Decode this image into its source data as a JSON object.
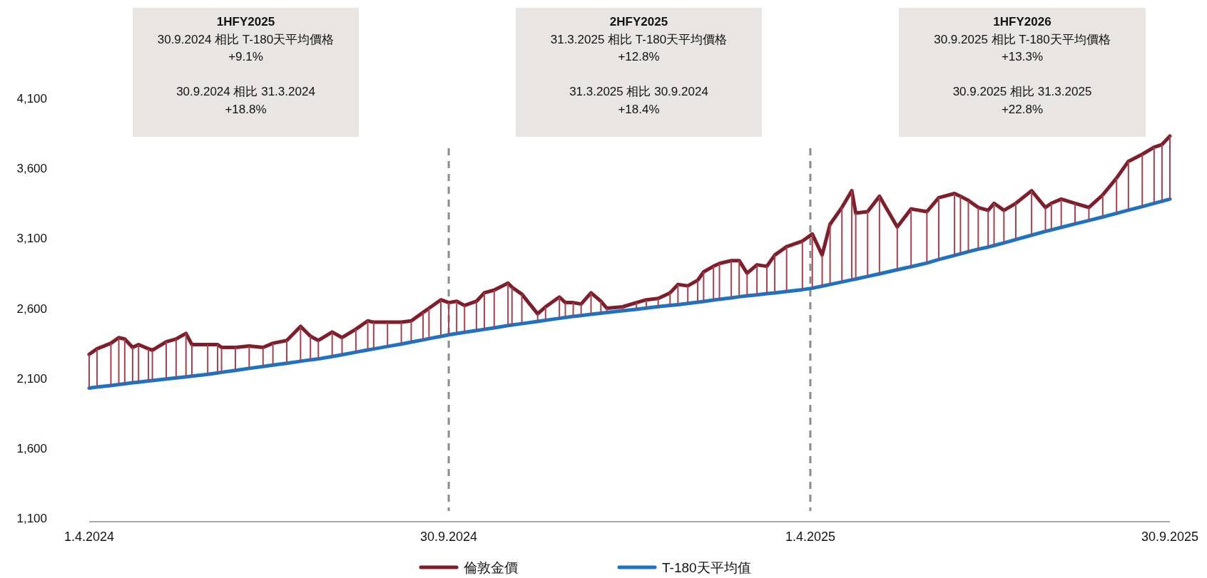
{
  "chart_data": {
    "type": "line",
    "xlim": [
      "2024-04-01",
      "2025-09-30"
    ],
    "ylim": [
      1100,
      4100
    ],
    "xticks": [
      {
        "value": "2024-04-01",
        "label": "1.4.2024"
      },
      {
        "value": "2024-09-30",
        "label": "30.9.2024"
      },
      {
        "value": "2025-04-01",
        "label": "1.4.2025"
      },
      {
        "value": "2025-09-30",
        "label": "30.9.2025"
      }
    ],
    "yticks": [
      {
        "value": 1100,
        "label": "1,100"
      },
      {
        "value": 1600,
        "label": "1,600"
      },
      {
        "value": 2100,
        "label": "2,100"
      },
      {
        "value": 2600,
        "label": "2,600"
      },
      {
        "value": 3100,
        "label": "3,100"
      },
      {
        "value": 3600,
        "label": "3,600"
      },
      {
        "value": 4100,
        "label": "4,100"
      }
    ],
    "grid": false,
    "legend": "bottom",
    "marker": "none",
    "line_style": "solid",
    "ref_lines": [
      {
        "axis": "x",
        "value": "2024-09-30",
        "color": "#8c8c8c",
        "line_style": "dashed"
      },
      {
        "axis": "x",
        "value": "2025-04-01",
        "color": "#8c8c8c",
        "line_style": "dashed"
      }
    ],
    "annotations": [
      "1HFY2025\n30.9.2024 相比 T-180天平均價格\n+9.1%\n\n30.9.2024 相比 31.3.2024\n+18.8%",
      "2HFY2025\n31.3.2025 相比 T-180天平均價格\n+12.8%\n\n31.3.2025 相比 30.9.2024\n+18.4%",
      "1HFY2026\n30.9.2025 相比 T-180天平均價格\n+13.3%\n\n30.9.2025 相比 31.3.2025\n+22.8%"
    ],
    "x": [
      "2024-04-01",
      "2024-04-05",
      "2024-04-12",
      "2024-04-16",
      "2024-04-19",
      "2024-04-23",
      "2024-04-26",
      "2024-05-01",
      "2024-05-03",
      "2024-05-10",
      "2024-05-15",
      "2024-05-20",
      "2024-05-23",
      "2024-05-31",
      "2024-06-05",
      "2024-06-07",
      "2024-06-14",
      "2024-06-21",
      "2024-06-28",
      "2024-07-03",
      "2024-07-10",
      "2024-07-17",
      "2024-07-22",
      "2024-07-26",
      "2024-08-02",
      "2024-08-07",
      "2024-08-14",
      "2024-08-20",
      "2024-08-23",
      "2024-08-30",
      "2024-09-06",
      "2024-09-11",
      "2024-09-17",
      "2024-09-20",
      "2024-09-26",
      "2024-09-30",
      "2024-10-04",
      "2024-10-08",
      "2024-10-14",
      "2024-10-18",
      "2024-10-23",
      "2024-10-30",
      "2024-11-01",
      "2024-11-06",
      "2024-11-14",
      "2024-11-18",
      "2024-11-25",
      "2024-11-28",
      "2024-12-02",
      "2024-12-06",
      "2024-12-11",
      "2024-12-16",
      "2024-12-19",
      "2024-12-27",
      "2025-01-03",
      "2025-01-08",
      "2025-01-14",
      "2025-01-20",
      "2025-01-24",
      "2025-01-29",
      "2025-02-03",
      "2025-02-06",
      "2025-02-11",
      "2025-02-14",
      "2025-02-20",
      "2025-02-24",
      "2025-02-28",
      "2025-03-05",
      "2025-03-10",
      "2025-03-14",
      "2025-03-20",
      "2025-03-28",
      "2025-04-02",
      "2025-04-07",
      "2025-04-11",
      "2025-04-17",
      "2025-04-22",
      "2025-04-24",
      "2025-04-30",
      "2025-05-06",
      "2025-05-15",
      "2025-05-22",
      "2025-05-30",
      "2025-06-05",
      "2025-06-13",
      "2025-06-16",
      "2025-06-20",
      "2025-06-25",
      "2025-06-30",
      "2025-07-03",
      "2025-07-08",
      "2025-07-14",
      "2025-07-22",
      "2025-07-29",
      "2025-08-01",
      "2025-08-06",
      "2025-08-13",
      "2025-08-20",
      "2025-08-27",
      "2025-09-03",
      "2025-09-09",
      "2025-09-16",
      "2025-09-22",
      "2025-09-26",
      "2025-09-30"
    ],
    "series": [
      {
        "name": "倫敦金價",
        "color": "#7f1d2b",
        "values": [
          2270,
          2310,
          2350,
          2390,
          2380,
          2320,
          2340,
          2310,
          2300,
          2360,
          2380,
          2420,
          2340,
          2340,
          2340,
          2320,
          2320,
          2330,
          2320,
          2350,
          2370,
          2470,
          2400,
          2370,
          2430,
          2390,
          2450,
          2510,
          2500,
          2500,
          2500,
          2510,
          2570,
          2600,
          2660,
          2640,
          2650,
          2620,
          2650,
          2710,
          2730,
          2780,
          2750,
          2700,
          2560,
          2610,
          2680,
          2640,
          2640,
          2630,
          2710,
          2650,
          2600,
          2610,
          2640,
          2660,
          2670,
          2710,
          2770,
          2760,
          2800,
          2860,
          2900,
          2920,
          2940,
          2940,
          2850,
          2910,
          2900,
          2980,
          3040,
          3080,
          3130,
          2980,
          3200,
          3320,
          3440,
          3280,
          3290,
          3400,
          3180,
          3310,
          3290,
          3390,
          3420,
          3400,
          3370,
          3320,
          3300,
          3350,
          3300,
          3350,
          3440,
          3320,
          3350,
          3380,
          3350,
          3320,
          3410,
          3530,
          3650,
          3700,
          3750,
          3770,
          3830
        ]
      },
      {
        "name": "T-180天平均值",
        "color": "#1a73c5",
        "values": [
          2030,
          2037,
          2048,
          2055,
          2060,
          2067,
          2072,
          2080,
          2083,
          2094,
          2102,
          2110,
          2115,
          2128,
          2138,
          2142,
          2156,
          2170,
          2184,
          2194,
          2207,
          2221,
          2231,
          2238,
          2255,
          2268,
          2286,
          2302,
          2309,
          2327,
          2344,
          2358,
          2374,
          2383,
          2399,
          2410,
          2419,
          2428,
          2441,
          2449,
          2460,
          2476,
          2480,
          2490,
          2506,
          2514,
          2528,
          2534,
          2542,
          2548,
          2556,
          2564,
          2569,
          2582,
          2593,
          2601,
          2611,
          2620,
          2626,
          2634,
          2644,
          2649,
          2658,
          2664,
          2674,
          2682,
          2689,
          2696,
          2704,
          2710,
          2720,
          2733,
          2743,
          2758,
          2770,
          2788,
          2803,
          2809,
          2827,
          2846,
          2875,
          2897,
          2923,
          2948,
          2978,
          2989,
          3004,
          3022,
          3037,
          3048,
          3067,
          3091,
          3122,
          3149,
          3160,
          3178,
          3203,
          3227,
          3252,
          3278,
          3301,
          3327,
          3350,
          3365,
          3380
        ]
      },
      {
        "type": "bar",
        "color": "#a8404f",
        "base": [
          2030,
          2037,
          2048,
          2055,
          2060,
          2067,
          2072,
          2080,
          2083,
          2094,
          2102,
          2110,
          2115,
          2128,
          2138,
          2142,
          2156,
          2170,
          2184,
          2194,
          2207,
          2221,
          2231,
          2238,
          2255,
          2268,
          2286,
          2302,
          2309,
          2327,
          2344,
          2358,
          2374,
          2383,
          2399,
          2410,
          2419,
          2428,
          2441,
          2449,
          2460,
          2476,
          2480,
          2490,
          2506,
          2514,
          2528,
          2534,
          2542,
          2548,
          2556,
          2564,
          2569,
          2582,
          2593,
          2601,
          2611,
          2620,
          2626,
          2634,
          2644,
          2649,
          2658,
          2664,
          2674,
          2682,
          2689,
          2696,
          2704,
          2710,
          2720,
          2733,
          2743,
          2758,
          2770,
          2788,
          2803,
          2809,
          2827,
          2846,
          2875,
          2897,
          2923,
          2948,
          2978,
          2989,
          3004,
          3022,
          3037,
          3048,
          3067,
          3091,
          3122,
          3149,
          3160,
          3178,
          3203,
          3227,
          3252,
          3278,
          3301,
          3327,
          3350,
          3365,
          3380
        ],
        "values": [
          240,
          273,
          302,
          335,
          320,
          253,
          268,
          230,
          217,
          266,
          278,
          310,
          225,
          212,
          202,
          178,
          164,
          160,
          136,
          156,
          163,
          249,
          169,
          132,
          175,
          122,
          164,
          208,
          191,
          173,
          156,
          152,
          196,
          217,
          261,
          230,
          231,
          192,
          209,
          261,
          270,
          304,
          270,
          210,
          54,
          96,
          152,
          106,
          98,
          82,
          154,
          86,
          31,
          28,
          47,
          59,
          59,
          90,
          144,
          126,
          156,
          211,
          242,
          256,
          266,
          258,
          161,
          214,
          196,
          270,
          320,
          347,
          387,
          222,
          430,
          532,
          637,
          471,
          463,
          554,
          305,
          413,
          367,
          442,
          442,
          411,
          366,
          298,
          263,
          302,
          233,
          259,
          318,
          171,
          190,
          202,
          147,
          93,
          158,
          252,
          349,
          373,
          400,
          405,
          450
        ]
      }
    ]
  }
}
